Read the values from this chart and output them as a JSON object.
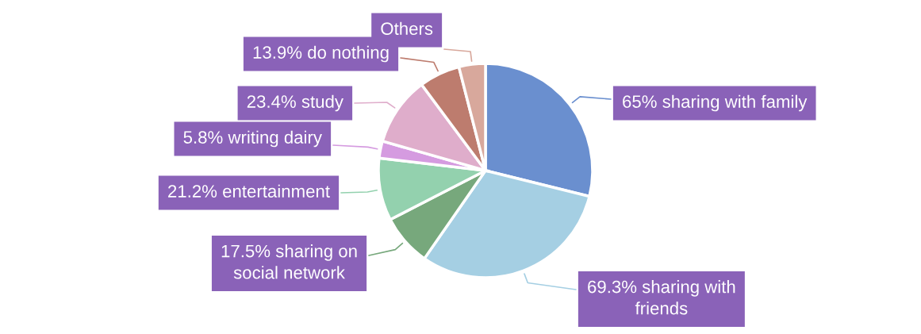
{
  "chart_data": {
    "type": "pie",
    "categories": [
      "65% sharing with family",
      "69.3% sharing with\nfriends",
      "17.5% sharing on\nsocial network",
      "21.2% entertainment",
      "5.8% writing dairy",
      "23.4% study",
      "13.9% do nothing",
      "Others"
    ],
    "values": [
      65,
      69.3,
      17.5,
      21.2,
      5.8,
      23.4,
      13.9,
      9
    ],
    "colors": [
      "#6a8fcf",
      "#a5cfe3",
      "#77a87c",
      "#93d1ae",
      "#d59be0",
      "#dfadcb",
      "#bd7c6e",
      "#d8a89c"
    ],
    "legend": false
  }
}
